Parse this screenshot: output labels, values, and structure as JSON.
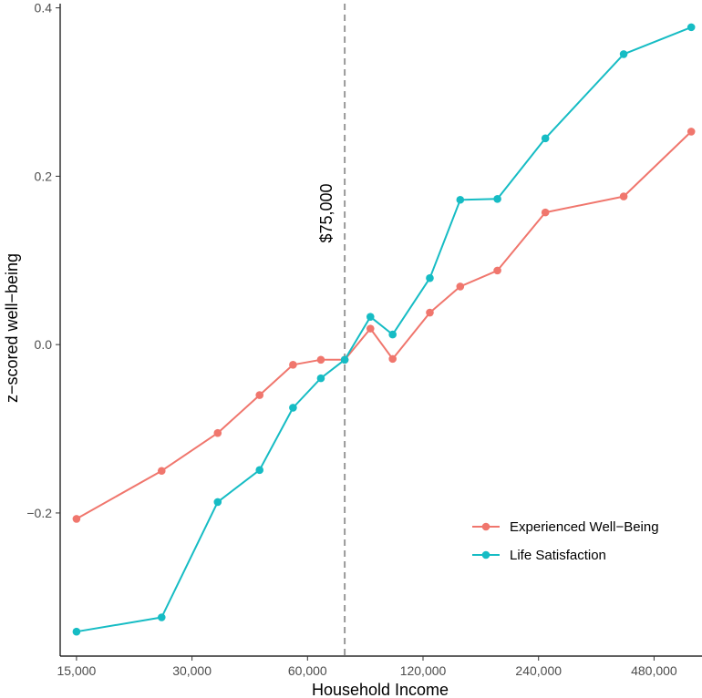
{
  "chart_data": {
    "type": "line",
    "xlabel": "Household Income",
    "ylabel": "z−scored well−being",
    "x_scale": "log",
    "xlim": [
      13600,
      640000
    ],
    "ylim": [
      -0.37,
      0.405
    ],
    "x_ticks": [
      {
        "value": 15000,
        "label": "15,000"
      },
      {
        "value": 30000,
        "label": "30,000"
      },
      {
        "value": 60000,
        "label": "60,000"
      },
      {
        "value": 120000,
        "label": "120,000"
      },
      {
        "value": 240000,
        "label": "240,000"
      },
      {
        "value": 480000,
        "label": "480,000"
      }
    ],
    "y_ticks": [
      {
        "value": 0.4,
        "label": "0.4"
      },
      {
        "value": 0.2,
        "label": "0.2"
      },
      {
        "value": 0.0,
        "label": "0.0"
      },
      {
        "value": -0.2,
        "label": "−0.2"
      }
    ],
    "grid": false,
    "legend_position": "bottom-right",
    "annotation": {
      "text": "$75,000",
      "x": 75000
    },
    "series": [
      {
        "name": "Experienced Well−Being",
        "color": "#f0766d",
        "x": [
          15000,
          25000,
          35000,
          45000,
          55000,
          65000,
          75000,
          87500,
          100000,
          125000,
          150000,
          187500,
          250000,
          400000,
          600000
        ],
        "y": [
          -0.207,
          -0.15,
          -0.105,
          -0.06,
          -0.024,
          -0.018,
          -0.018,
          0.019,
          -0.017,
          0.038,
          0.069,
          0.088,
          0.157,
          0.176,
          0.253
        ]
      },
      {
        "name": "Life Satisfaction",
        "color": "#16bcc4",
        "x": [
          15000,
          25000,
          35000,
          45000,
          55000,
          65000,
          75000,
          87500,
          100000,
          125000,
          150000,
          187500,
          250000,
          400000,
          600000
        ],
        "y": [
          -0.341,
          -0.324,
          -0.187,
          -0.149,
          -0.075,
          -0.04,
          -0.018,
          0.033,
          0.012,
          0.079,
          0.172,
          0.173,
          0.245,
          0.345,
          0.377
        ]
      }
    ]
  }
}
